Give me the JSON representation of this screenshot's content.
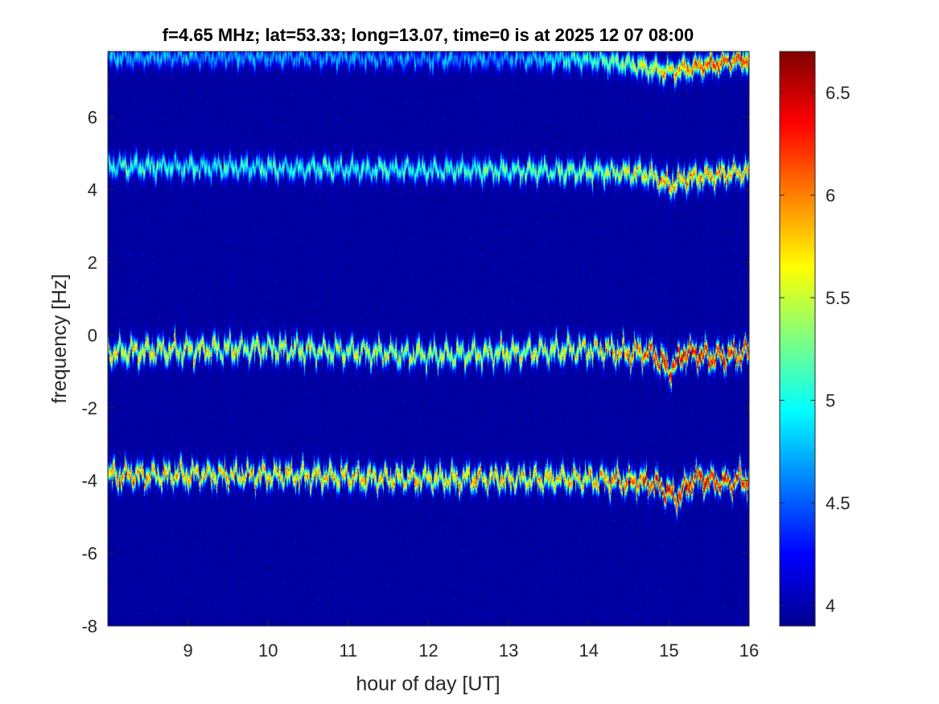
{
  "chart_data": {
    "type": "heatmap",
    "title": "f=4.65 MHz;  lat=53.33; long=13.07, time=0 is at 2025 12 07 08:00",
    "xlabel": "hour of day [UT]",
    "ylabel": "frequency [Hz]",
    "xlim": [
      8,
      16
    ],
    "ylim": [
      -8,
      7.8
    ],
    "xticks": [
      9,
      10,
      11,
      12,
      13,
      14,
      15,
      16
    ],
    "yticks": [
      -8,
      -6,
      -4,
      -2,
      0,
      2,
      4,
      6
    ],
    "ytick_labels": [
      "-8",
      "-6",
      "-4",
      "-2",
      "0",
      "2",
      "4",
      "6"
    ],
    "colormap": "jet",
    "clim": [
      3.9,
      6.7
    ],
    "colorbar_ticks": [
      4,
      4.5,
      5,
      5.5,
      6,
      6.5
    ],
    "background_value": 3.95,
    "traces": [
      {
        "name": "",
        "center": [
          [
            8,
            7.65
          ],
          [
            10,
            7.65
          ],
          [
            12,
            7.6
          ],
          [
            14,
            7.6
          ],
          [
            14.5,
            7.45
          ],
          [
            15,
            7.25
          ],
          [
            15.5,
            7.45
          ],
          [
            16,
            7.6
          ]
        ],
        "intensity": [
          [
            8,
            5.0
          ],
          [
            13,
            4.9
          ],
          [
            14.5,
            5.6
          ],
          [
            15.5,
            6.5
          ],
          [
            16,
            6.3
          ]
        ],
        "wiggle": 0.1
      },
      {
        "name": "",
        "center": [
          [
            8,
            4.65
          ],
          [
            10,
            4.6
          ],
          [
            12,
            4.55
          ],
          [
            14,
            4.5
          ],
          [
            14.7,
            4.45
          ],
          [
            15,
            4.15
          ],
          [
            15.3,
            4.35
          ],
          [
            15.7,
            4.45
          ],
          [
            16,
            4.5
          ]
        ],
        "intensity": [
          [
            8,
            5.3
          ],
          [
            12,
            5.3
          ],
          [
            14,
            5.6
          ],
          [
            15.2,
            6.2
          ],
          [
            16,
            6.0
          ]
        ],
        "wiggle": 0.12
      },
      {
        "name": "",
        "center": [
          [
            8,
            -0.45
          ],
          [
            10,
            -0.35
          ],
          [
            12,
            -0.55
          ],
          [
            14,
            -0.4
          ],
          [
            14.8,
            -0.5
          ],
          [
            15,
            -0.95
          ],
          [
            15.2,
            -0.45
          ],
          [
            15.6,
            -0.6
          ],
          [
            16,
            -0.45
          ]
        ],
        "intensity": [
          [
            8,
            5.9
          ],
          [
            12,
            5.7
          ],
          [
            14,
            5.9
          ],
          [
            15.2,
            6.7
          ],
          [
            16,
            6.5
          ]
        ],
        "wiggle": 0.16
      },
      {
        "name": "",
        "center": [
          [
            8,
            -3.85
          ],
          [
            10,
            -3.85
          ],
          [
            12,
            -3.95
          ],
          [
            14,
            -3.95
          ],
          [
            14.8,
            -4.05
          ],
          [
            15.1,
            -4.45
          ],
          [
            15.3,
            -3.95
          ],
          [
            15.7,
            -4.05
          ],
          [
            16,
            -3.95
          ]
        ],
        "intensity": [
          [
            8,
            6.1
          ],
          [
            12,
            6.0
          ],
          [
            14,
            6.1
          ],
          [
            15.2,
            6.7
          ],
          [
            16,
            6.5
          ]
        ],
        "wiggle": 0.15
      }
    ]
  }
}
